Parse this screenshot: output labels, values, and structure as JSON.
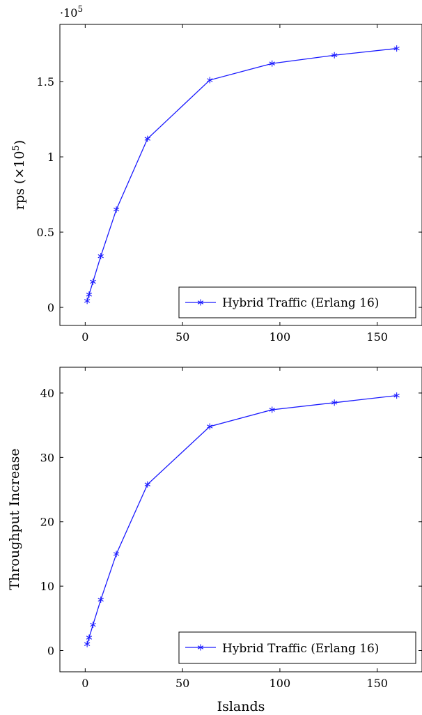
{
  "chart_data": [
    {
      "type": "line",
      "xlabel": "",
      "ylabel": "rps (×10",
      "ylabel_sup": "5",
      "y_multiplier": "·10",
      "y_multiplier_sup": "5",
      "xlim": [
        -13,
        173
      ],
      "ylim": [
        -0.12,
        1.88
      ],
      "xticks": [
        0,
        50,
        100,
        150
      ],
      "xtick_labels": [
        "0",
        "50",
        "100",
        "150"
      ],
      "yticks": [
        0,
        0.5,
        1,
        1.5
      ],
      "ytick_labels": [
        "0",
        "0.5",
        "1",
        "1.5"
      ],
      "legend_position": "bottom-right",
      "series": [
        {
          "name": "Hybrid Traffic (Erlang 16)",
          "color": "#1a1aff",
          "marker": "star",
          "x": [
            1,
            2,
            4,
            8,
            16,
            32,
            64,
            96,
            128,
            160
          ],
          "y": [
            0.043,
            0.085,
            0.17,
            0.34,
            0.65,
            1.12,
            1.51,
            1.62,
            1.675,
            1.72
          ]
        }
      ]
    },
    {
      "type": "line",
      "xlabel": "Islands",
      "ylabel": "Throughput Increase",
      "xlim": [
        -13,
        173
      ],
      "ylim": [
        -3.3,
        44
      ],
      "xticks": [
        0,
        50,
        100,
        150
      ],
      "xtick_labels": [
        "0",
        "50",
        "100",
        "150"
      ],
      "yticks": [
        0,
        10,
        20,
        30,
        40
      ],
      "ytick_labels": [
        "0",
        "10",
        "20",
        "30",
        "40"
      ],
      "legend_position": "bottom-right",
      "series": [
        {
          "name": "Hybrid Traffic (Erlang 16)",
          "color": "#1a1aff",
          "marker": "star",
          "x": [
            1,
            2,
            4,
            8,
            16,
            32,
            64,
            96,
            128,
            160
          ],
          "y": [
            1,
            2,
            4,
            7.9,
            15,
            25.8,
            34.8,
            37.4,
            38.5,
            39.6
          ]
        }
      ]
    }
  ]
}
